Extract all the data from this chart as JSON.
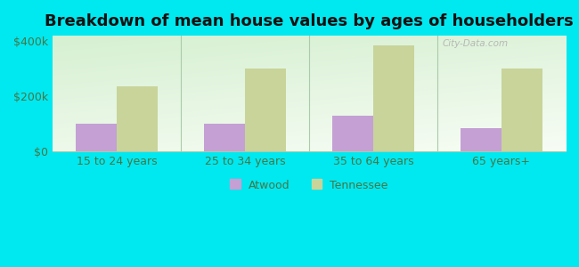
{
  "title": "Breakdown of mean house values by ages of householders",
  "categories": [
    "15 to 24 years",
    "25 to 34 years",
    "35 to 64 years",
    "65 years+"
  ],
  "atwood_values": [
    100000,
    100000,
    130000,
    85000
  ],
  "tennessee_values": [
    235000,
    300000,
    385000,
    300000
  ],
  "atwood_color": "#c4a0d4",
  "tennessee_color": "#c8d49a",
  "background_color": "#00e8f0",
  "plot_bg_top": "#c8e8c0",
  "plot_bg_bottom": "#f0f8ee",
  "ylim": [
    0,
    420000
  ],
  "ytick_values": [
    0,
    200000,
    400000
  ],
  "ytick_labels": [
    "$0",
    "$200k",
    "$400k"
  ],
  "legend_atwood": "Atwood",
  "legend_tennessee": "Tennessee",
  "title_fontsize": 13,
  "bar_width": 0.32,
  "watermark": "City-Data.com",
  "separator_color": "#aaccaa",
  "tick_label_color": "#447744",
  "spine_color": "#aaccaa"
}
